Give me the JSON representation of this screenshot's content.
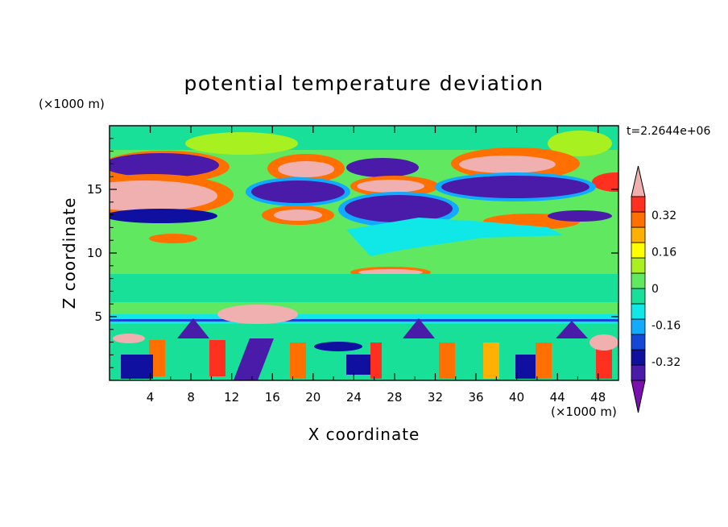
{
  "chart_data": {
    "type": "heatmap",
    "title": "potential temperature deviation",
    "xlabel": "X coordinate",
    "ylabel": "Z coordinate",
    "x_unit": "(×1000 m)",
    "y_unit": "(×1000 m)",
    "time_label": "t=2.2644e+06",
    "xlim": [
      0,
      50
    ],
    "ylim": [
      0,
      20
    ],
    "x_ticks": [
      "4",
      "8",
      "12",
      "16",
      "20",
      "24",
      "28",
      "32",
      "36",
      "40",
      "44",
      "48"
    ],
    "y_ticks": [
      "5",
      "10",
      "15"
    ],
    "colorbar": {
      "levels": [
        -0.4,
        -0.32,
        -0.24,
        -0.16,
        -0.08,
        0,
        0.08,
        0.16,
        0.24,
        0.32,
        0.4
      ],
      "labels": [
        "0.32",
        "0.16",
        "0",
        "-0.16",
        "-0.32"
      ],
      "colors": [
        "#7a10b0",
        "#4a1aa8",
        "#1010a0",
        "#1448d8",
        "#10aaff",
        "#10e8e8",
        "#18e098",
        "#60e860",
        "#a8f020",
        "#ffff00",
        "#ffb000",
        "#ff7000",
        "#ff3020",
        "#f0b0b0"
      ]
    }
  }
}
